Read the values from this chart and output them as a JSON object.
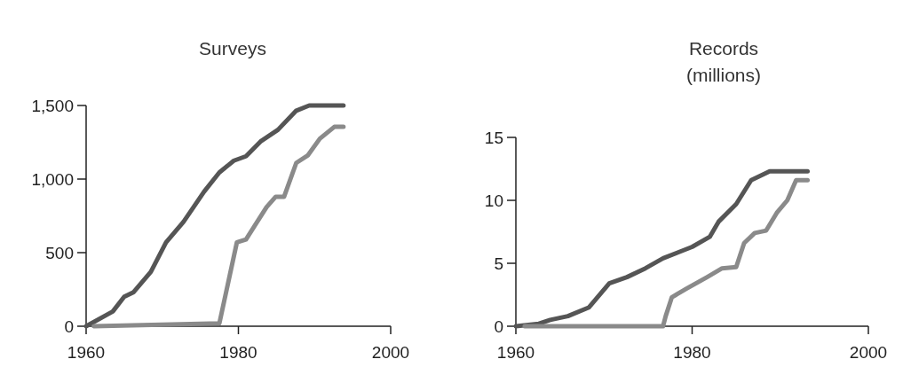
{
  "chart_data": [
    {
      "type": "line",
      "title": "Surveys",
      "xlim": [
        1960,
        2000
      ],
      "xticks": [
        1960,
        1980,
        2000
      ],
      "ylim": [
        0,
        1500
      ],
      "yticks": [
        0,
        {
          "value": 500,
          "label": "500"
        },
        {
          "value": 1000,
          "label": "1,000"
        },
        {
          "value": 1500,
          "label": "1,500"
        }
      ],
      "grid": false,
      "marker": "none",
      "line_style": "solid",
      "series": [
        {
          "color": "#555555",
          "x": [
            1960,
            1963.5,
            1965,
            1966.2,
            1968.5,
            1970.5,
            1972.8,
            1975.5,
            1977.5,
            1979.4,
            1981,
            1982.9,
            1985.2,
            1987.6,
            1989.3,
            1993.8
          ],
          "values": [
            0,
            100,
            200,
            230,
            370,
            570,
            710,
            915,
            1045,
            1125,
            1155,
            1255,
            1335,
            1465,
            1500,
            1500
          ]
        },
        {
          "color": "#8a8a8a",
          "x": [
            1961,
            1977.5,
            1979.8,
            1981,
            1983.7,
            1984.9,
            1986,
            1987.6,
            1989.1,
            1990.7,
            1992.6,
            1993.8
          ],
          "values": [
            0,
            20,
            570,
            590,
            810,
            880,
            880,
            1110,
            1160,
            1275,
            1355,
            1355
          ]
        }
      ]
    },
    {
      "type": "line",
      "title": "Records\n(millions)",
      "xlim": [
        1960,
        2000
      ],
      "xticks": [
        1960,
        1980,
        2000
      ],
      "ylim": [
        0,
        15
      ],
      "yticks": [
        0,
        5,
        10,
        15
      ],
      "grid": false,
      "marker": "none",
      "line_style": "solid",
      "series": [
        {
          "color": "#555555",
          "x": [
            1960,
            1962.6,
            1963.9,
            1965.9,
            1968.3,
            1970.6,
            1972.6,
            1974.7,
            1976.7,
            1980,
            1982,
            1983,
            1985,
            1986.7,
            1988.8,
            1993.1
          ],
          "values": [
            0,
            0.2,
            0.5,
            0.8,
            1.5,
            3.4,
            3.9,
            4.6,
            5.4,
            6.3,
            7.1,
            8.3,
            9.7,
            11.6,
            12.3,
            12.3
          ]
        },
        {
          "color": "#8a8a8a",
          "x": [
            1961,
            1976.7,
            1977,
            1977.7,
            1979.4,
            1981.7,
            1983.4,
            1985,
            1985.9,
            1987.1,
            1988.4,
            1989.6,
            1990.8,
            1991.8,
            1993.1
          ],
          "values": [
            0,
            0,
            0.8,
            2.3,
            3.0,
            3.9,
            4.6,
            4.7,
            6.6,
            7.4,
            7.6,
            9.0,
            10.0,
            11.6,
            11.6
          ]
        }
      ]
    }
  ]
}
